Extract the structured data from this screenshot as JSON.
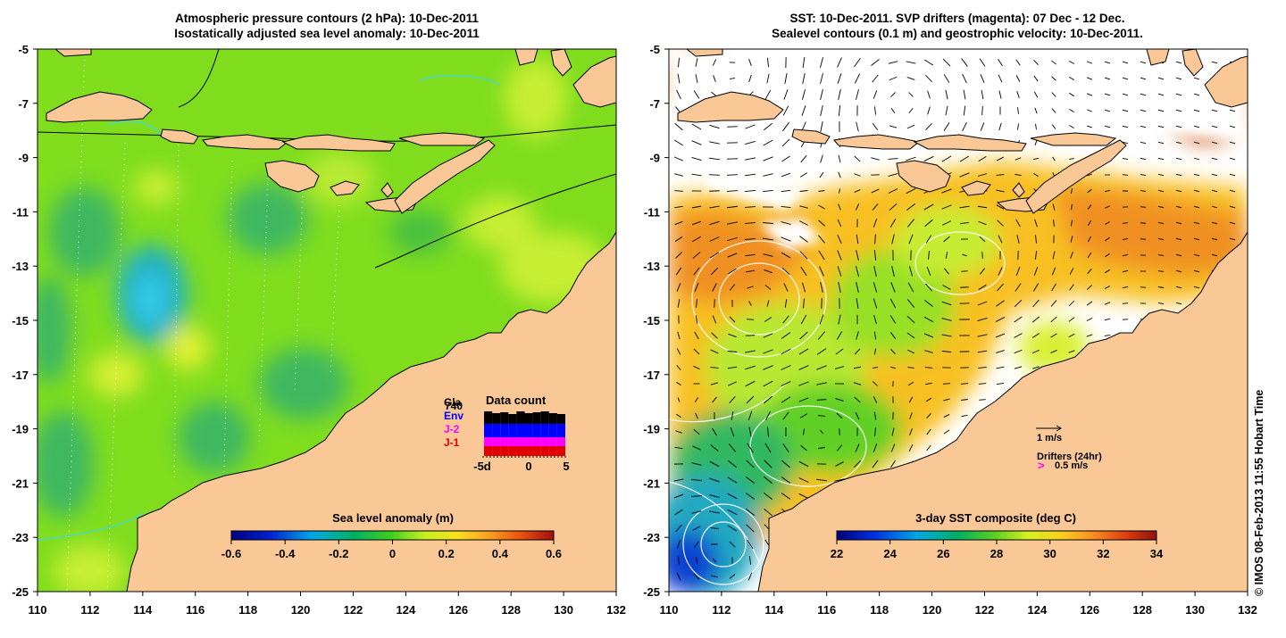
{
  "colors": {
    "land": "#f9c896",
    "ocean_base": "#7fdd1e",
    "coast": "#000000",
    "contour_cyan": "#40d8e0",
    "magenta": "#ff00ff",
    "blue": "#0000ff",
    "red": "#e00000",
    "black": "#000000"
  },
  "left_panel": {
    "title_line1": "Atmospheric pressure contours (2 hPa): 10-Dec-2011",
    "title_line2": "Isostatically adjusted sea level anomaly: 10-Dec-2011",
    "x_ticks": [
      "110",
      "112",
      "114",
      "116",
      "118",
      "120",
      "122",
      "124",
      "126",
      "128",
      "130",
      "132"
    ],
    "y_ticks": [
      "-5",
      "-7",
      "-9",
      "-11",
      "-13",
      "-15",
      "-17",
      "-19",
      "-21",
      "-23",
      "-25"
    ],
    "colorbar": {
      "title": "Sea level anomaly (m)",
      "ticks": [
        "-0.6",
        "-0.4",
        "-0.2",
        "0",
        "0.2",
        "0.4",
        "0.6"
      ]
    },
    "data_count": {
      "title": "Data count",
      "legend": [
        "Gla",
        "740",
        "Env",
        "J-2",
        "J-1"
      ],
      "x_labels": [
        "-5d",
        "0",
        "5"
      ]
    }
  },
  "right_panel": {
    "title_line1": "SST: 10-Dec-2011. SVP drifters (magenta): 07 Dec - 12 Dec.",
    "title_line2": "Sealevel contours (0.1 m) and geostrophic velocity: 10-Dec-2011.",
    "x_ticks": [
      "110",
      "112",
      "114",
      "116",
      "118",
      "120",
      "122",
      "124",
      "126",
      "128",
      "130",
      "132"
    ],
    "y_ticks": [
      "-5",
      "-7",
      "-9",
      "-11",
      "-13",
      "-15",
      "-17",
      "-19",
      "-21",
      "-23",
      "-25"
    ],
    "colorbar": {
      "title": "3-day SST composite (deg C)",
      "ticks": [
        "22",
        "24",
        "26",
        "28",
        "30",
        "32",
        "34"
      ]
    },
    "velocity_legend": "1 m/s",
    "drifters_title": "Drifters (24hr)",
    "drifters_marker": ">",
    "drifters_speed": "0.5 m/s"
  },
  "credit": "© IMOS 08-Feb-2013 11:55 Hobart Time"
}
